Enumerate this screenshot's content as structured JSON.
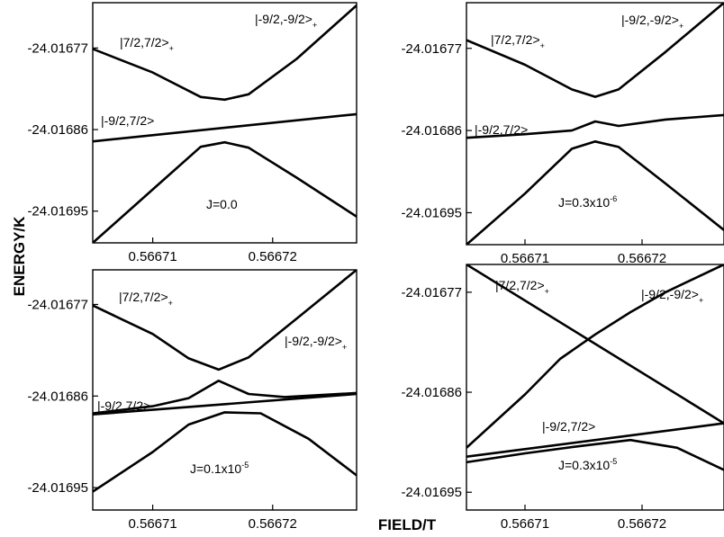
{
  "figure": {
    "ylabel": "ENERGY/K",
    "xlabel": "FIELD/T"
  },
  "chart_data": [
    {
      "type": "line",
      "panel": "top-left",
      "annotation": {
        "main": "J=0.0",
        "sup": ""
      },
      "xlim": [
        0.566705,
        0.566727
      ],
      "ylim": [
        -24.016985,
        -24.01672
      ],
      "xticks": [
        "0.56671",
        "0.56672"
      ],
      "xtick_values": [
        0.56671,
        0.56672
      ],
      "yticks": [
        "-24.01677",
        "-24.01686",
        "-24.01695"
      ],
      "ytick_values": [
        -24.01677,
        -24.01686,
        -24.01695
      ],
      "state_labels": [
        {
          "text": "|7/2,7/2>",
          "sub": "+"
        },
        {
          "text": "|-9/2,-9/2>",
          "sub": "+"
        },
        {
          "text": "|-9/2,7/2>",
          "sub": ""
        }
      ],
      "series": [
        {
          "x": [
            0.566705,
            0.56671,
            0.566714,
            0.566716,
            0.566718,
            0.566722,
            0.566727
          ],
          "y": [
            -24.016771,
            -24.016797,
            -24.016824,
            -24.016827,
            -24.016821,
            -24.016782,
            -24.016723
          ]
        },
        {
          "x": [
            0.566705,
            0.566727
          ],
          "y": [
            -24.016873,
            -24.016843
          ]
        },
        {
          "x": [
            0.566705,
            0.56671,
            0.566714,
            0.566716,
            0.566718,
            0.566722,
            0.566727
          ],
          "y": [
            -24.016985,
            -24.016926,
            -24.016879,
            -24.016874,
            -24.01688,
            -24.016913,
            -24.016956
          ]
        }
      ]
    },
    {
      "type": "line",
      "panel": "top-right",
      "annotation": {
        "main": "J=0.3x10",
        "sup": "-6"
      },
      "xlim": [
        0.566705,
        0.566727
      ],
      "ylim": [
        -24.016985,
        -24.01672
      ],
      "xticks": [
        "0.56671",
        "0.56672"
      ],
      "xtick_values": [
        0.56671,
        0.56672
      ],
      "yticks": [
        "-24.01677",
        "-24.01686",
        "-24.01695"
      ],
      "ytick_values": [
        -24.01677,
        -24.01686,
        -24.01695
      ],
      "state_labels": [
        {
          "text": "|7/2,7/2>",
          "sub": "+"
        },
        {
          "text": "|-9/2,-9/2>",
          "sub": "+"
        },
        {
          "text": "|-9/2,7/2>",
          "sub": ""
        }
      ],
      "series": [
        {
          "x": [
            0.566705,
            0.56671,
            0.566714,
            0.566716,
            0.566718,
            0.566722,
            0.566727
          ],
          "y": [
            -24.016761,
            -24.016788,
            -24.016815,
            -24.016823,
            -24.016815,
            -24.016774,
            -24.01672
          ]
        },
        {
          "x": [
            0.566705,
            0.56671,
            0.566714,
            0.566716,
            0.566718,
            0.566722,
            0.566727
          ],
          "y": [
            -24.016868,
            -24.016864,
            -24.01686,
            -24.01685,
            -24.016855,
            -24.016848,
            -24.016843
          ]
        },
        {
          "x": [
            0.566705,
            0.56671,
            0.566714,
            0.566716,
            0.566718,
            0.566722,
            0.566727
          ],
          "y": [
            -24.016985,
            -24.016929,
            -24.01688,
            -24.016872,
            -24.016878,
            -24.016918,
            -24.016969
          ]
        }
      ]
    },
    {
      "type": "line",
      "panel": "bottom-left",
      "annotation": {
        "main": "J=0.1x10",
        "sup": "-5"
      },
      "xlim": [
        0.566705,
        0.566727
      ],
      "ylim": [
        -24.016972,
        -24.016736
      ],
      "xticks": [
        "0.56671",
        "0.56672"
      ],
      "xtick_values": [
        0.56671,
        0.56672
      ],
      "yticks": [
        "-24.01677",
        "-24.01686",
        "-24.01695"
      ],
      "ytick_values": [
        -24.01677,
        -24.01686,
        -24.01695
      ],
      "state_labels": [
        {
          "text": "|7/2,7/2>",
          "sub": "+"
        },
        {
          "text": "|-9/2,-9/2>",
          "sub": "+"
        },
        {
          "text": "|-9/2,7/2>",
          "sub": ""
        }
      ],
      "series": [
        {
          "x": [
            0.566705,
            0.56671,
            0.566713,
            0.5667155,
            0.566718,
            0.566722,
            0.566727
          ],
          "y": [
            -24.016771,
            -24.016799,
            -24.016823,
            -24.016834,
            -24.016822,
            -24.016784,
            -24.016736
          ]
        },
        {
          "x": [
            0.566705,
            0.56671,
            0.566713,
            0.5667155,
            0.566718,
            0.566721,
            0.566727
          ],
          "y": [
            -24.016877,
            -24.01687,
            -24.016862,
            -24.016845,
            -24.016858,
            -24.016861,
            -24.016857
          ]
        },
        {
          "x": [
            0.566705,
            0.566727
          ],
          "y": [
            -24.016878,
            -24.016858
          ]
        },
        {
          "x": [
            0.566705,
            0.56671,
            0.566713,
            0.566716,
            0.566719,
            0.566723,
            0.566727
          ],
          "y": [
            -24.016954,
            -24.016915,
            -24.016888,
            -24.016876,
            -24.016877,
            -24.016902,
            -24.016938
          ]
        }
      ]
    },
    {
      "type": "line",
      "panel": "bottom-right",
      "annotation": {
        "main": "J=0.3x10",
        "sup": "-5"
      },
      "xlim": [
        0.566705,
        0.566727
      ],
      "ylim": [
        -24.016966,
        -24.016745
      ],
      "xticks": [
        "0.56671",
        "0.56672"
      ],
      "xtick_values": [
        0.56671,
        0.56672
      ],
      "yticks": [
        "-24.01677",
        "-24.01686",
        "-24.01695"
      ],
      "ytick_values": [
        -24.01677,
        -24.01686,
        -24.01695
      ],
      "state_labels": [
        {
          "text": "|7/2,7/2>",
          "sub": "+"
        },
        {
          "text": "|-9/2,-9/2>",
          "sub": "+"
        },
        {
          "text": "|-9/2,7/2>",
          "sub": ""
        }
      ],
      "series": [
        {
          "x": [
            0.566705,
            0.566727
          ],
          "y": [
            -24.016745,
            -24.016888
          ]
        },
        {
          "x": [
            0.566705,
            0.56671,
            0.566713,
            0.566716,
            0.566719,
            0.566722,
            0.566727
          ],
          "y": [
            -24.01691,
            -24.016862,
            -24.01683,
            -24.016808,
            -24.016788,
            -24.01677,
            -24.016745
          ]
        },
        {
          "x": [
            0.566705,
            0.566727
          ],
          "y": [
            -24.016918,
            -24.016888
          ]
        },
        {
          "x": [
            0.566705,
            0.56671,
            0.566715,
            0.566719,
            0.566723,
            0.566727
          ],
          "y": [
            -24.016923,
            -24.016915,
            -24.016908,
            -24.016903,
            -24.01691,
            -24.01693
          ]
        }
      ]
    }
  ]
}
